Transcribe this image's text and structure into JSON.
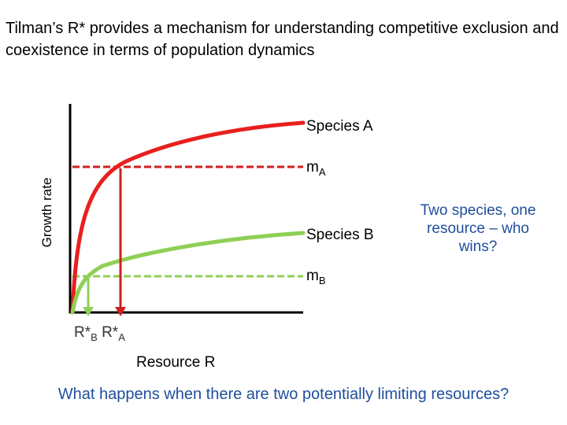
{
  "title": "Tilman’s R* provides a mechanism for understanding competitive exclusion and coexistence in terms of population dynamics",
  "diagram": {
    "y_axis_label": "Growth rate",
    "x_axis_label": "Resource R",
    "species_a_label": "Species A",
    "species_b_label": "Species B",
    "m_a": {
      "base": "m",
      "sub": "A"
    },
    "m_b": {
      "base": "m",
      "sub": "B"
    },
    "r_star_b": {
      "base": "R*",
      "sub": "B"
    },
    "r_star_a": {
      "base": "R*",
      "sub": "A"
    },
    "question": "Two species, one resource – who wins?",
    "colors": {
      "species_a": "#e8201e",
      "species_b": "#8fcf55",
      "text_blue": "#1f4e9c"
    }
  },
  "bottom_question": "What happens when there are two potentially limiting resources?"
}
